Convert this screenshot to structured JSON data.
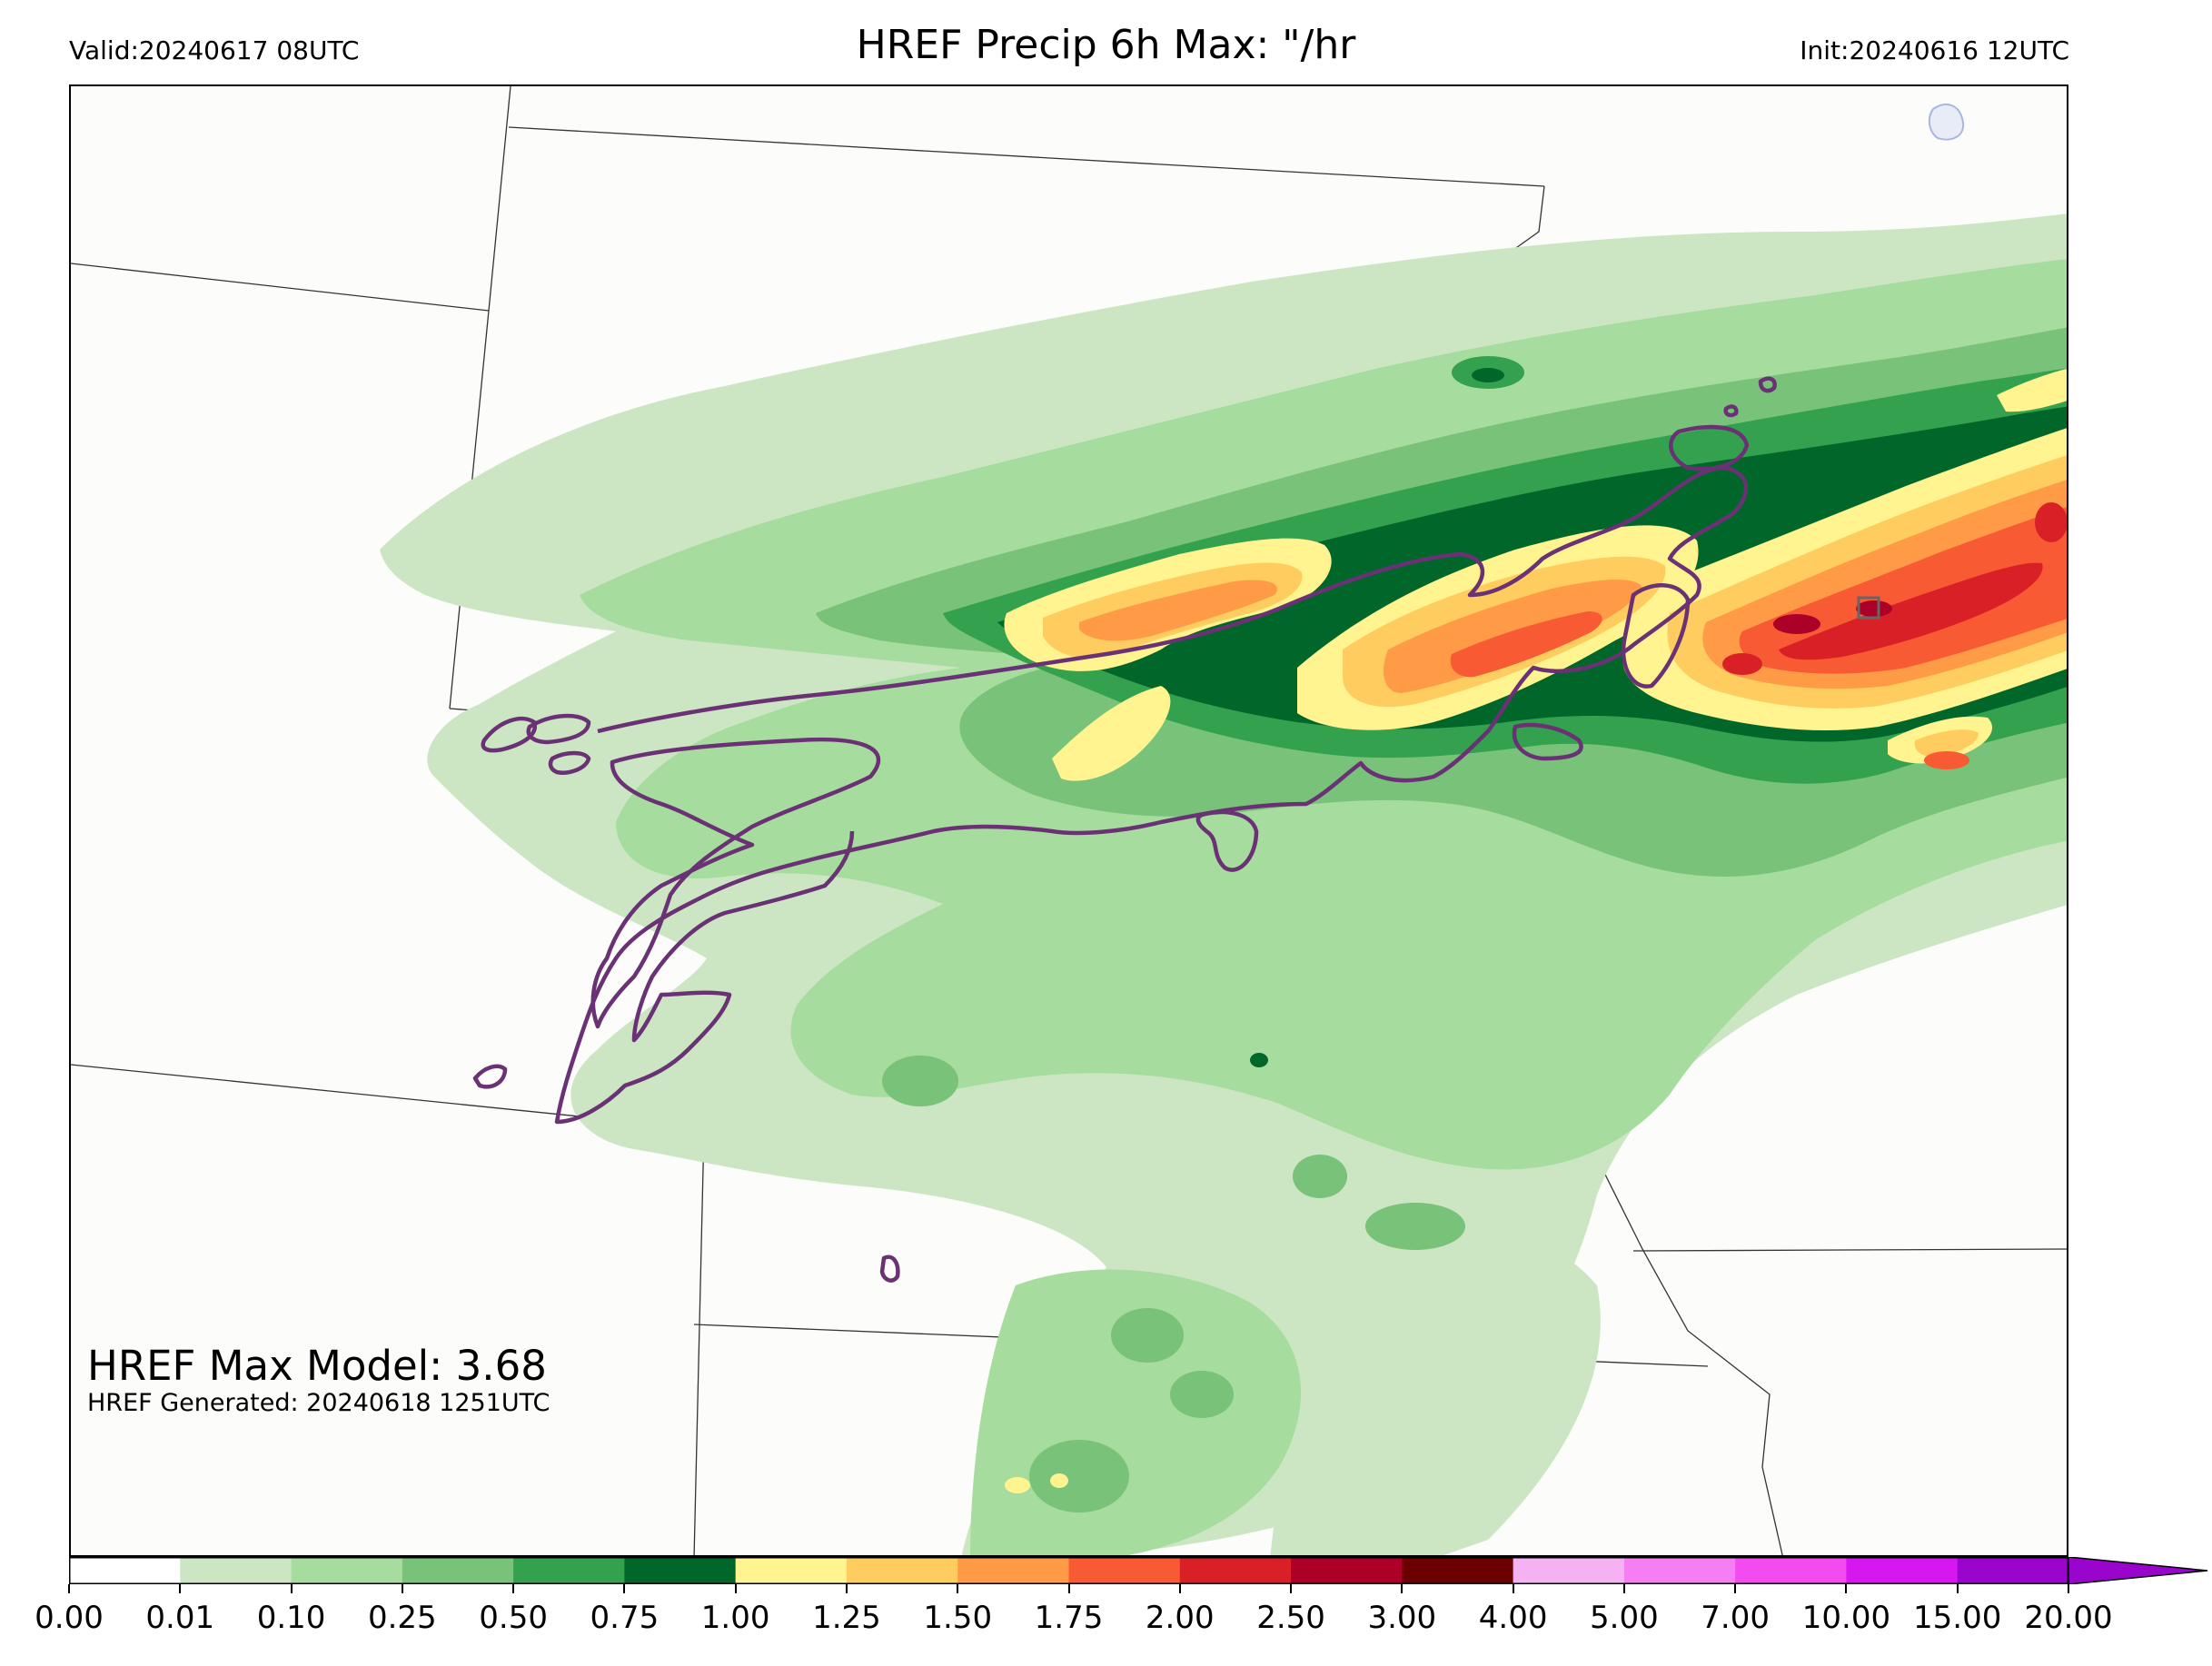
{
  "header": {
    "valid": "Valid:20240617 08UTC",
    "title": "HREF Precip 6h Max: \"/hr",
    "init": "Init:20240616 12UTC"
  },
  "annotations": {
    "max_model": "HREF Max Model: 3.68",
    "generated": "HREF Generated: 20240618 1251UTC"
  },
  "colorbar": {
    "ticks": [
      "0.00",
      "0.01",
      "0.10",
      "0.25",
      "0.50",
      "0.75",
      "1.00",
      "1.25",
      "1.50",
      "1.75",
      "2.00",
      "2.50",
      "3.00",
      "4.00",
      "5.00",
      "7.00",
      "10.00",
      "15.00",
      "20.00"
    ],
    "colors": [
      "#ffffff",
      "#cce6c4",
      "#a6dc9d",
      "#78c27a",
      "#34a14f",
      "#00662a",
      "#fff48f",
      "#ffcc60",
      "#ff9a47",
      "#f85a33",
      "#da2027",
      "#ad0028",
      "#6c0000",
      "#f4b2f2",
      "#f47ef2",
      "#f24bf0",
      "#d717ef",
      "#9a05cd"
    ],
    "extend": "max"
  },
  "legend_colors": {
    "light_green": "#cce6c4",
    "green": "#a6dc9d",
    "mid_green": "#78c27a",
    "dark_green": "#34a14f",
    "darkest_green": "#00662a",
    "yellow": "#fff48f",
    "gold": "#ffcc60",
    "orange": "#ff9a47",
    "red_orange": "#f85a33",
    "red": "#da2027",
    "outline_purple": "#6a3275"
  }
}
